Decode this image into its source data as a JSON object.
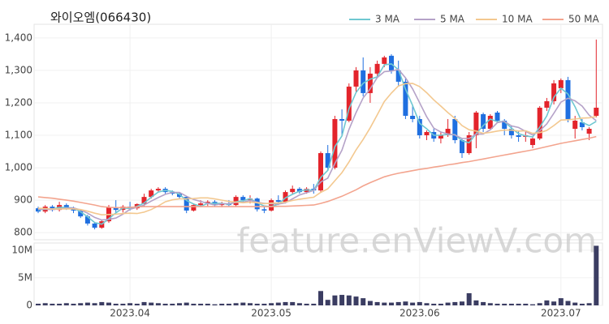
{
  "chart_data": {
    "type": "candlestick",
    "title": "와이오엠(066430)",
    "watermark": "feature.enViewV.com",
    "categories": [
      null,
      null,
      null,
      null,
      null,
      null,
      null,
      null,
      null,
      null,
      null,
      null,
      null,
      "2023.04",
      null,
      null,
      null,
      null,
      null,
      null,
      null,
      null,
      null,
      null,
      null,
      null,
      null,
      null,
      null,
      null,
      null,
      null,
      null,
      "2023.05",
      null,
      null,
      null,
      null,
      null,
      null,
      null,
      null,
      null,
      null,
      null,
      null,
      null,
      null,
      null,
      null,
      null,
      null,
      null,
      null,
      "2023.06",
      null,
      null,
      null,
      null,
      null,
      null,
      null,
      null,
      null,
      null,
      null,
      null,
      null,
      null,
      null,
      null,
      null,
      null,
      null,
      "2023.07",
      null,
      null,
      null,
      null,
      null
    ],
    "open": [
      875,
      865,
      880,
      870,
      885,
      875,
      868,
      850,
      828,
      815,
      835,
      878,
      870,
      880,
      875,
      888,
      910,
      930,
      935,
      925,
      920,
      910,
      868,
      885,
      890,
      895,
      885,
      890,
      885,
      910,
      900,
      905,
      872,
      868,
      900,
      895,
      925,
      935,
      925,
      935,
      930,
      1045,
      1000,
      1150,
      1145,
      1250,
      1300,
      1230,
      1290,
      1320,
      1345,
      1300,
      1265,
      1160,
      1150,
      1100,
      1110,
      1090,
      1100,
      1150,
      1085,
      1045,
      1100,
      1165,
      1120,
      1170,
      1145,
      1120,
      1100,
      1095,
      1070,
      1090,
      1185,
      1205,
      1245,
      1270,
      1120,
      1140,
      1105,
      1160
    ],
    "high": [
      880,
      885,
      885,
      895,
      890,
      880,
      870,
      855,
      830,
      840,
      885,
      900,
      885,
      895,
      890,
      920,
      935,
      940,
      940,
      930,
      925,
      912,
      890,
      900,
      900,
      900,
      895,
      900,
      915,
      915,
      915,
      908,
      880,
      905,
      915,
      930,
      945,
      940,
      940,
      950,
      1050,
      1070,
      1160,
      1180,
      1260,
      1310,
      1340,
      1310,
      1330,
      1345,
      1350,
      1330,
      1275,
      1195,
      1160,
      1115,
      1120,
      1110,
      1150,
      1160,
      1090,
      1110,
      1175,
      1170,
      1165,
      1175,
      1150,
      1130,
      1115,
      1110,
      1095,
      1190,
      1215,
      1270,
      1275,
      1280,
      1160,
      1150,
      1125,
      1395
    ],
    "low": [
      860,
      860,
      865,
      865,
      870,
      860,
      845,
      822,
      810,
      812,
      830,
      860,
      862,
      868,
      870,
      880,
      905,
      925,
      920,
      915,
      905,
      860,
      865,
      878,
      882,
      880,
      878,
      880,
      880,
      895,
      890,
      865,
      860,
      865,
      885,
      890,
      918,
      920,
      920,
      920,
      925,
      990,
      995,
      1100,
      1140,
      1230,
      1220,
      1200,
      1280,
      1310,
      1290,
      1250,
      1150,
      1140,
      1090,
      1085,
      1080,
      1075,
      1095,
      1075,
      1030,
      1040,
      1060,
      1110,
      1115,
      1140,
      1100,
      1090,
      1080,
      1080,
      1060,
      1085,
      1175,
      1195,
      1230,
      1140,
      1090,
      1115,
      1085,
      1155
    ],
    "close": [
      865,
      880,
      870,
      885,
      875,
      868,
      850,
      828,
      815,
      835,
      878,
      870,
      880,
      875,
      888,
      910,
      930,
      935,
      925,
      920,
      910,
      868,
      885,
      890,
      895,
      885,
      890,
      885,
      910,
      900,
      905,
      872,
      868,
      900,
      895,
      925,
      935,
      925,
      935,
      930,
      1045,
      1000,
      1150,
      1145,
      1250,
      1300,
      1230,
      1290,
      1320,
      1340,
      1300,
      1265,
      1160,
      1150,
      1100,
      1110,
      1090,
      1100,
      1120,
      1085,
      1045,
      1100,
      1170,
      1120,
      1160,
      1145,
      1120,
      1100,
      1095,
      1100,
      1090,
      1185,
      1205,
      1260,
      1270,
      1150,
      1145,
      1125,
      1120,
      1185
    ],
    "up_color": "#e3242b",
    "down_color": "#1f6fe0",
    "ma": [
      {
        "name": "3 MA",
        "color": "#6fc8d1",
        "values": [
          870,
          872,
          872,
          878,
          877,
          876,
          864,
          849,
          831,
          826,
          843,
          861,
          876,
          874,
          881,
          891,
          909,
          925,
          930,
          927,
          918,
          899,
          888,
          881,
          890,
          890,
          890,
          887,
          895,
          898,
          905,
          892,
          882,
          880,
          888,
          907,
          918,
          928,
          932,
          930,
          970,
          992,
          1065,
          1098,
          1182,
          1232,
          1260,
          1273,
          1280,
          1317,
          1320,
          1302,
          1242,
          1192,
          1137,
          1120,
          1100,
          1100,
          1103,
          1102,
          1083,
          1077,
          1105,
          1130,
          1150,
          1142,
          1142,
          1122,
          1105,
          1098,
          1095,
          1125,
          1160,
          1217,
          1245,
          1227,
          1188,
          1140,
          1130,
          1143
        ]
      },
      {
        "name": "5 MA",
        "color": "#b5a2c8",
        "values": [
          872,
          872,
          871,
          873,
          875,
          876,
          870,
          860,
          847,
          839,
          841,
          845,
          857,
          872,
          878,
          885,
          897,
          908,
          918,
          924,
          924,
          912,
          902,
          896,
          890,
          885,
          889,
          889,
          893,
          894,
          899,
          894,
          890,
          889,
          888,
          892,
          904,
          916,
          923,
          930,
          956,
          968,
          1013,
          1054,
          1118,
          1170,
          1215,
          1243,
          1278,
          1296,
          1298,
          1303,
          1277,
          1243,
          1200,
          1157,
          1122,
          1110,
          1104,
          1101,
          1090,
          1090,
          1104,
          1104,
          1117,
          1139,
          1143,
          1129,
          1124,
          1112,
          1101,
          1114,
          1135,
          1168,
          1202,
          1214,
          1206,
          1190,
          1162,
          1145
        ]
      },
      {
        "name": "10 MA",
        "color": "#f3c88f",
        "values": [
          875,
          874,
          873,
          873,
          873,
          873,
          871,
          866,
          860,
          855,
          856,
          857,
          859,
          860,
          859,
          863,
          871,
          882,
          895,
          901,
          904,
          904,
          905,
          907,
          907,
          904,
          900,
          896,
          894,
          892,
          894,
          892,
          889,
          891,
          891,
          894,
          899,
          903,
          906,
          909,
          924,
          935,
          960,
          985,
          1018,
          1055,
          1087,
          1123,
          1163,
          1204,
          1230,
          1252,
          1259,
          1260,
          1250,
          1231,
          1209,
          1190,
          1170,
          1152,
          1130,
          1117,
          1113,
          1106,
          1109,
          1113,
          1116,
          1116,
          1113,
          1114,
          1106,
          1108,
          1115,
          1130,
          1147,
          1148,
          1150,
          1153,
          1154,
          1158
        ]
      },
      {
        "name": "50 MA",
        "color": "#f3a48e",
        "values": [
          910,
          908,
          906,
          903,
          900,
          897,
          893,
          889,
          885,
          880,
          878,
          877,
          877,
          878,
          879,
          880,
          880,
          880,
          880,
          880,
          880,
          880,
          880,
          880,
          880,
          880,
          880,
          880,
          880,
          880,
          880,
          880,
          880,
          880,
          881,
          881,
          882,
          883,
          884,
          885,
          890,
          896,
          904,
          912,
          922,
          932,
          944,
          954,
          963,
          972,
          978,
          983,
          987,
          991,
          995,
          998,
          1002,
          1005,
          1009,
          1012,
          1016,
          1019,
          1023,
          1027,
          1031,
          1035,
          1039,
          1043,
          1047,
          1051,
          1055,
          1060,
          1065,
          1070,
          1075,
          1079,
          1083,
          1087,
          1091,
          1096
        ]
      }
    ],
    "ylim": [
      778,
      1442
    ],
    "yticks": [
      800,
      900,
      {
        "value": 1000,
        "label": "1,000"
      },
      {
        "value": 1100,
        "label": "1,100"
      },
      {
        "value": 1200,
        "label": "1,200"
      },
      {
        "value": 1300,
        "label": "1,300"
      },
      {
        "value": 1400,
        "label": "1,400"
      }
    ],
    "volume": {
      "color": "#3b3d62",
      "values": [
        0.3,
        0.4,
        0.3,
        0.3,
        0.4,
        0.3,
        0.4,
        0.5,
        0.4,
        0.6,
        0.5,
        0.3,
        0.3,
        0.4,
        0.3,
        0.6,
        0.5,
        0.4,
        0.3,
        0.3,
        0.4,
        0.5,
        0.3,
        0.3,
        0.3,
        0.2,
        0.3,
        0.3,
        0.4,
        0.5,
        0.4,
        0.3,
        0.3,
        0.4,
        0.5,
        0.6,
        0.6,
        0.4,
        0.3,
        0.3,
        2.6,
        1.0,
        1.8,
        1.9,
        1.8,
        1.6,
        1.3,
        0.8,
        0.6,
        0.5,
        0.5,
        0.6,
        0.7,
        0.5,
        0.6,
        0.4,
        0.3,
        0.3,
        0.5,
        0.6,
        0.7,
        2.2,
        0.9,
        0.6,
        0.4,
        0.3,
        0.3,
        0.3,
        0.3,
        0.3,
        0.2,
        0.4,
        0.9,
        0.7,
        1.3,
        0.8,
        0.5,
        0.3,
        0.4,
        10.8
      ],
      "ylim": [
        0,
        11.3
      ],
      "yticks": [
        0,
        {
          "value": 5,
          "label": "5M"
        },
        {
          "value": 10,
          "label": "10M"
        }
      ]
    }
  }
}
